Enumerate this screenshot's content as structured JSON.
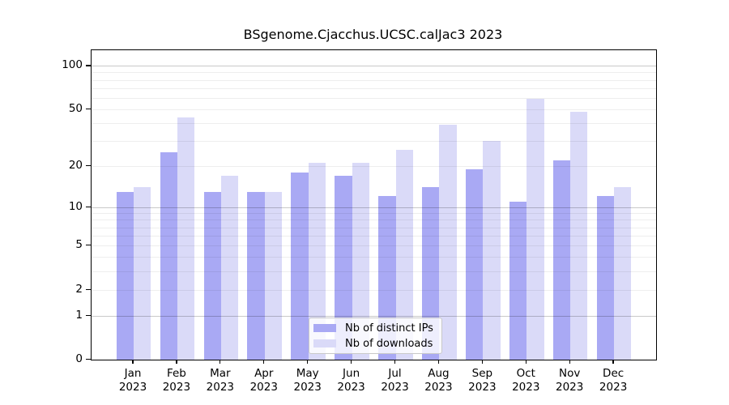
{
  "figure": {
    "background": "#ffffff",
    "title": "BSgenome.Cjacchus.UCSC.calJac3 2023"
  },
  "chart_data": {
    "type": "bar",
    "title": "BSgenome.Cjacchus.UCSC.calJac3 2023",
    "categories": [
      "Jan",
      "Feb",
      "Mar",
      "Apr",
      "May",
      "Jun",
      "Jul",
      "Aug",
      "Sep",
      "Oct",
      "Nov",
      "Dec"
    ],
    "category_year": "2023",
    "series": [
      {
        "name": "Nb of distinct IPs",
        "color": "#a9a9f4",
        "values": [
          13,
          25,
          13,
          13,
          18,
          17,
          12,
          14,
          19,
          11,
          22,
          12
        ]
      },
      {
        "name": "Nb of downloads",
        "color": "#dadaf8",
        "values": [
          14,
          44,
          17,
          13,
          21,
          21,
          26,
          39,
          30,
          59,
          48,
          14
        ]
      }
    ],
    "xlabel": "",
    "ylabel": "",
    "y_axis": {
      "scale": "log1p",
      "tick_labels": [
        0,
        1,
        2,
        5,
        10,
        20,
        50,
        100
      ],
      "major_gridlines": [
        1,
        10,
        100
      ],
      "minor_gridlines": [
        2,
        3,
        4,
        5,
        6,
        7,
        8,
        9,
        20,
        30,
        40,
        50,
        60,
        70,
        80,
        90
      ],
      "ylim": [
        0,
        128
      ],
      "grid": "on"
    },
    "legend": {
      "position": "bottom-center-inside",
      "entries": [
        "Nb of distinct IPs",
        "Nb of downloads"
      ]
    }
  }
}
